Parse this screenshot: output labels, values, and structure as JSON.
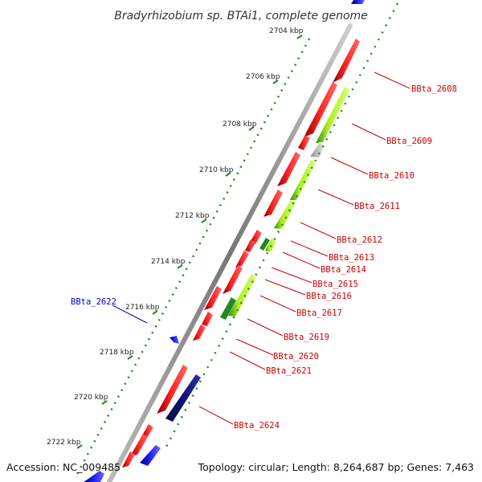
{
  "title": "Bradyrhizobium sp. BTAi1, complete genome",
  "footer": {
    "accession": "Accession: NC_009485",
    "topology": "Topology: circular; Length: 8,264,687 bp; Genes: 7,463"
  },
  "colors": {
    "forward_cds": "#ff1a1a",
    "reverse_cds": "#22aa22",
    "reverse_cds_light": "#aaee22",
    "blue_gene": "#1a1aff",
    "navy_gene": "#10106e",
    "grey_gene": "#c8c8c8",
    "backbone": "#888888",
    "tick_green": "#228822",
    "label_red": "#cc0000",
    "label_blue": "#0000cc"
  },
  "scale": [
    "2704 kbp",
    "2706 kbp",
    "2708 kbp",
    "2710 kbp",
    "2712 kbp",
    "2714 kbp",
    "2716 kbp",
    "2718 kbp",
    "2720 kbp",
    "2722 kbp"
  ],
  "gene_labels": [
    {
      "name": "BBta_2608",
      "color": "red"
    },
    {
      "name": "BBta_2609",
      "color": "red"
    },
    {
      "name": "BBta_2610",
      "color": "red"
    },
    {
      "name": "BBta_2611",
      "color": "red"
    },
    {
      "name": "BBta_2612",
      "color": "red"
    },
    {
      "name": "BBta_2613",
      "color": "red"
    },
    {
      "name": "BBta_2614",
      "color": "red"
    },
    {
      "name": "BBta_2615",
      "color": "red"
    },
    {
      "name": "BBta_2616",
      "color": "red"
    },
    {
      "name": "BBta_2617",
      "color": "red"
    },
    {
      "name": "BBta_2619",
      "color": "red"
    },
    {
      "name": "BBta_2620",
      "color": "red"
    },
    {
      "name": "BBta_2621",
      "color": "red"
    },
    {
      "name": "BBta_2624",
      "color": "red"
    },
    {
      "name": "BBta_2622",
      "color": "blue"
    }
  ]
}
